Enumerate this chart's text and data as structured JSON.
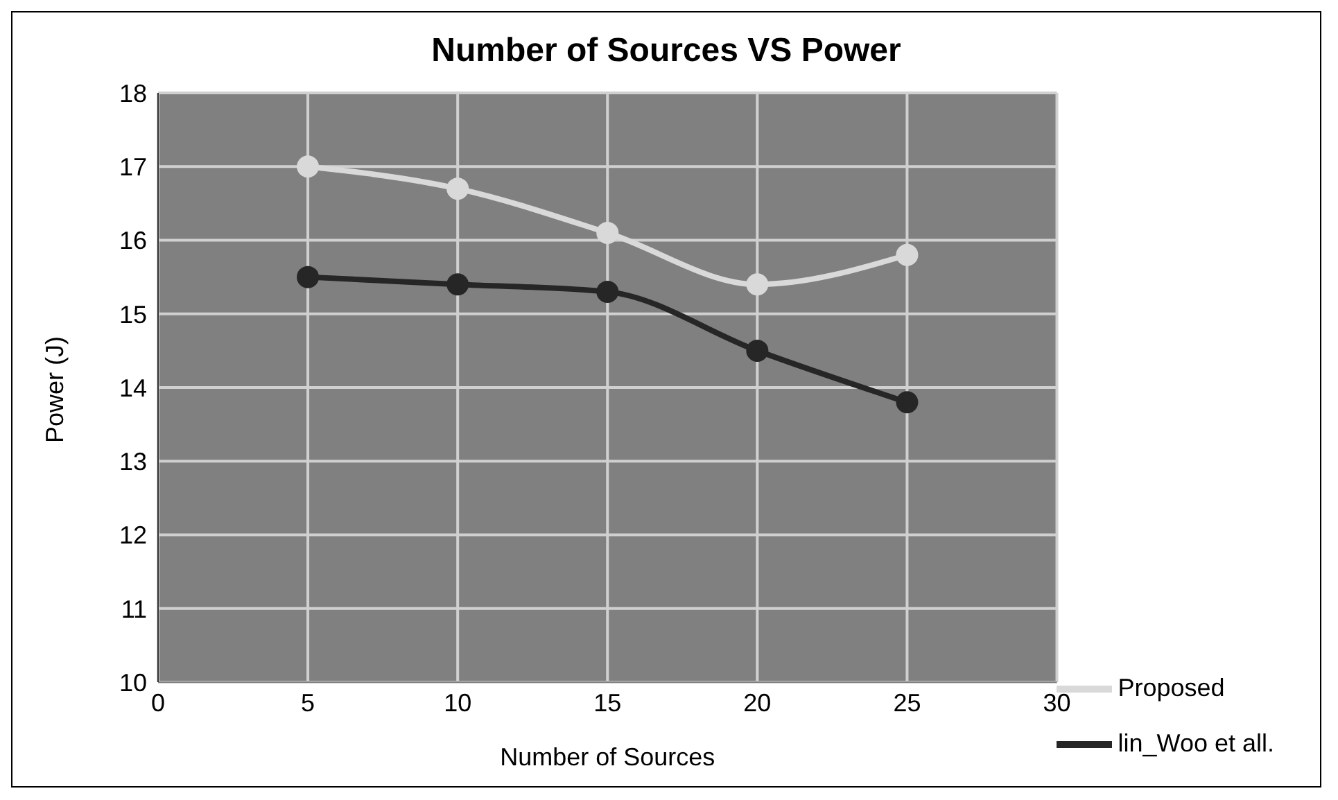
{
  "chart_data": {
    "type": "line",
    "title": "Number of Sources VS Power",
    "xlabel": "Number of Sources",
    "ylabel": "Power (J)",
    "x": [
      5,
      10,
      15,
      20,
      25
    ],
    "series": [
      {
        "name": "Proposed",
        "color": "#d9d9d9",
        "values": [
          17.0,
          16.7,
          16.1,
          15.4,
          15.8
        ]
      },
      {
        "name": "lin_Woo et all.",
        "color": "#262626",
        "values": [
          15.5,
          15.4,
          15.3,
          14.5,
          13.8
        ]
      }
    ],
    "xlim": [
      0,
      30
    ],
    "xticks": [
      0,
      5,
      10,
      15,
      20,
      25,
      30
    ],
    "ylim": [
      10,
      18
    ],
    "yticks": [
      10,
      11,
      12,
      13,
      14,
      15,
      16,
      17,
      18
    ],
    "grid": true,
    "legend": "bottom right",
    "marker": "circle",
    "line_style": "solid"
  }
}
